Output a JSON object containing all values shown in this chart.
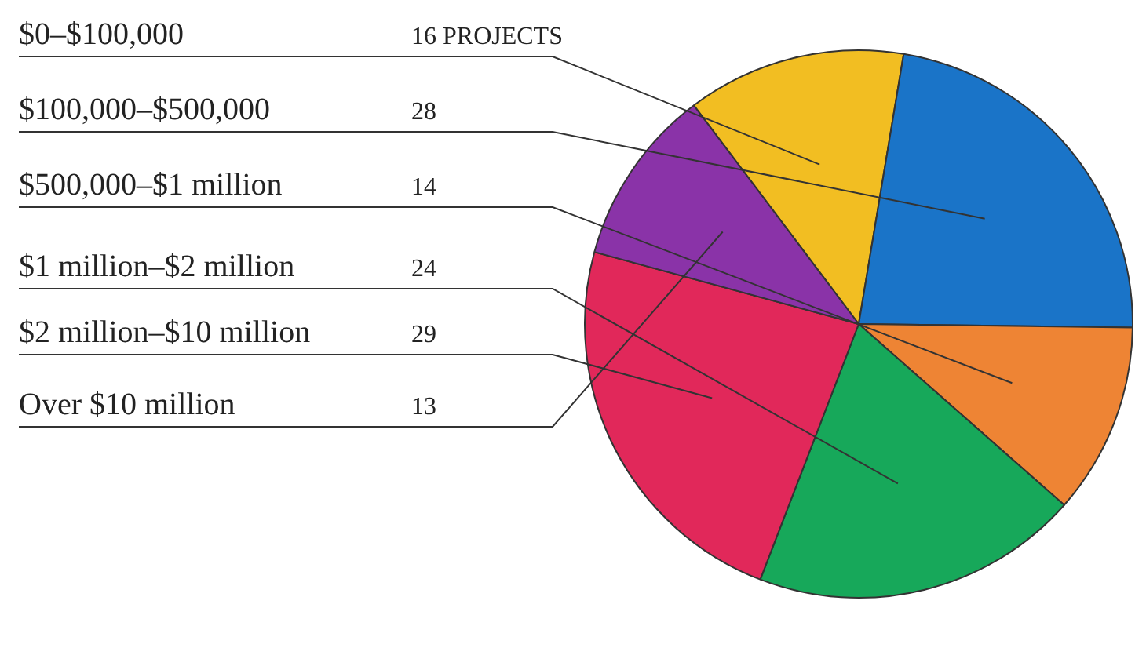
{
  "chart_data": {
    "type": "pie",
    "categories": [
      "$0–$100,000",
      "$100,000–$500,000",
      "$500,000–$1 million",
      "$1 million–$2 million",
      "$2 million–$10 million",
      "Over $10 million"
    ],
    "values": [
      16,
      28,
      14,
      24,
      29,
      13
    ],
    "colors": [
      "#f2be22",
      "#1a74c8",
      "#ee8434",
      "#17a85a",
      "#e1285a",
      "#8a33a8"
    ],
    "value_labels": [
      "16 PROJECTS",
      "28",
      "14",
      "24",
      "29",
      "13"
    ],
    "legend": false
  }
}
